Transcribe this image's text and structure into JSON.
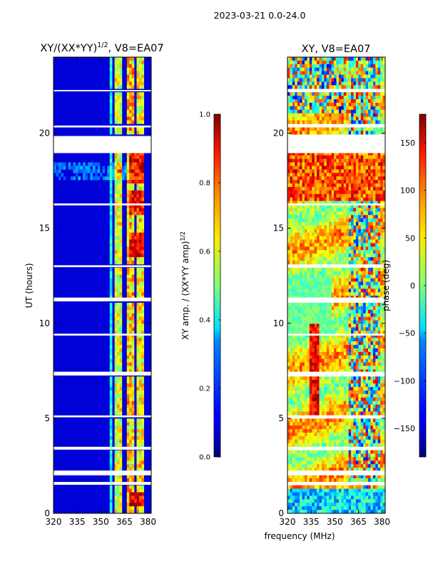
{
  "suptitle": "2023-03-21 0.0-24.0",
  "xlabel_shared": "frequency (MHz)",
  "chart_data": [
    {
      "type": "heatmap",
      "title_main": "XY/(XX*YY)",
      "title_exp": "1/2",
      "title_tail": ", V8=EA07",
      "ylabel": "UT (hours)",
      "xlim": [
        320,
        382
      ],
      "ylim": [
        0,
        24
      ],
      "xticks": [
        320,
        335,
        350,
        365,
        380
      ],
      "yticks": [
        0,
        5,
        10,
        15,
        20
      ],
      "colorbar": {
        "label_main": "XY amp. / (XX*YY amp)",
        "label_exp": "1/2",
        "range": [
          0.0,
          1.0
        ],
        "ticks": [
          "0.0",
          "0.2",
          "0.4",
          "0.6",
          "0.8",
          "1.0"
        ],
        "tick_values": [
          0.0,
          0.2,
          0.4,
          0.6,
          0.8,
          1.0
        ],
        "colormap": "jet"
      }
    },
    {
      "type": "heatmap",
      "title": "XY, V8=EA07",
      "xlim": [
        320,
        382
      ],
      "ylim": [
        0,
        24
      ],
      "xticks": [
        320,
        335,
        350,
        365,
        380
      ],
      "yticks": [
        0,
        5,
        10,
        15,
        20
      ],
      "colorbar": {
        "label": "phase (deg)",
        "range": [
          -180,
          180
        ],
        "ticks": [
          "150",
          "100",
          "50",
          "0",
          "−50",
          "−100",
          "−150"
        ],
        "tick_values": [
          150,
          100,
          50,
          0,
          -50,
          -100,
          -150
        ],
        "colormap": "jet"
      }
    }
  ],
  "flagged_ut_ranges": [
    [
      18.95,
      19.85
    ],
    [
      7.25,
      7.45
    ],
    [
      2.0,
      2.25
    ],
    [
      1.5,
      1.65
    ],
    [
      11.15,
      11.35
    ],
    [
      20.3,
      20.4
    ],
    [
      3.35,
      3.5
    ],
    [
      12.95,
      13.05
    ],
    [
      9.35,
      9.45
    ],
    [
      5.05,
      5.15
    ],
    [
      16.2,
      16.3
    ],
    [
      22.2,
      22.27
    ]
  ]
}
